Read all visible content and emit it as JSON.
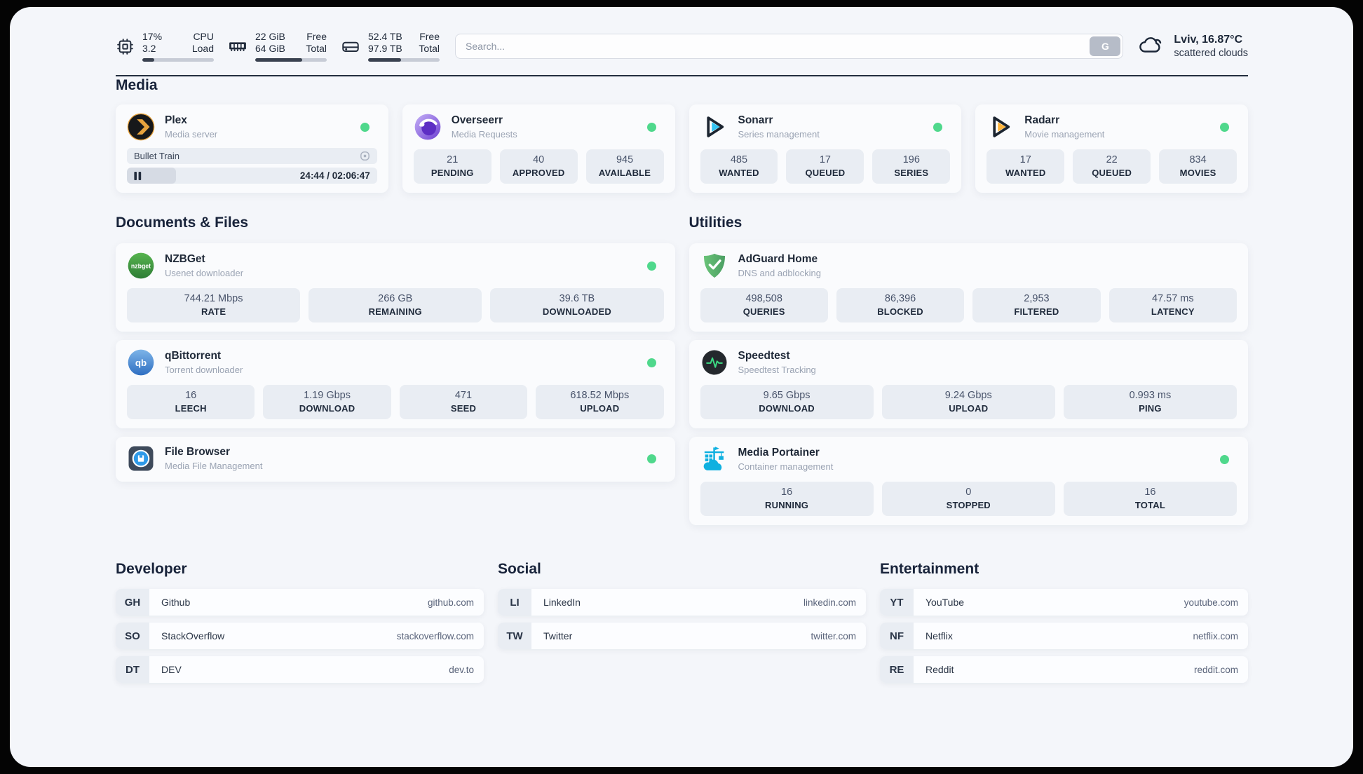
{
  "colors": {
    "status_online": "#4fd88c",
    "plex_accent": "#e8a33d",
    "sonarr_accent": "#35c5f4",
    "radarr_accent": "#ffb53c",
    "adguard_green": "#5fb370",
    "portainer_blue": "#0fb0e0",
    "nzbget_green": "#3e9d44",
    "qbittorrent_blue": "#4687d6",
    "text_dark": "#1f2938"
  },
  "header": {
    "cpu": {
      "icon": "cpu-icon",
      "value_top": "17%",
      "label_top": "CPU",
      "value_bottom": "3.2",
      "label_bottom": "Load",
      "used_pct": 17
    },
    "ram": {
      "icon": "ram-icon",
      "value_top": "22 GiB",
      "label_top": "Free",
      "value_bottom": "64 GiB",
      "label_bottom": "Total",
      "used_pct": 66
    },
    "disk": {
      "icon": "disk-icon",
      "value_top": "52.4 TB",
      "label_top": "Free",
      "value_bottom": "97.9 TB",
      "label_bottom": "Total",
      "used_pct": 46
    },
    "search": {
      "placeholder": "Search...",
      "engine_button": "G"
    },
    "weather": {
      "icon": "cloud-icon",
      "location_temp": "Lviv, 16.87°C",
      "condition": "scattered clouds"
    }
  },
  "sections": {
    "media": {
      "title": "Media"
    },
    "documents": {
      "title": "Documents & Files"
    },
    "utilities": {
      "title": "Utilities"
    },
    "developer": {
      "title": "Developer"
    },
    "social": {
      "title": "Social"
    },
    "entertainment": {
      "title": "Entertainment"
    }
  },
  "apps": {
    "plex": {
      "icon": "plex-icon",
      "title": "Plex",
      "subtitle": "Media server",
      "status": "online",
      "now_playing": "Bullet Train",
      "time_display": "24:44 / 02:06:47",
      "elapsed": "24:44",
      "duration": "02:06:47",
      "progress_pct": 19.5
    },
    "overseerr": {
      "icon": "overseerr-icon",
      "title": "Overseerr",
      "subtitle": "Media Requests",
      "status": "online",
      "stats": [
        {
          "value": "21",
          "label": "PENDING"
        },
        {
          "value": "40",
          "label": "APPROVED"
        },
        {
          "value": "945",
          "label": "AVAILABLE"
        }
      ]
    },
    "sonarr": {
      "icon": "sonarr-icon",
      "title": "Sonarr",
      "subtitle": "Series management",
      "status": "online",
      "stats": [
        {
          "value": "485",
          "label": "WANTED"
        },
        {
          "value": "17",
          "label": "QUEUED"
        },
        {
          "value": "196",
          "label": "SERIES"
        }
      ]
    },
    "radarr": {
      "icon": "radarr-icon",
      "title": "Radarr",
      "subtitle": "Movie management",
      "status": "online",
      "stats": [
        {
          "value": "17",
          "label": "WANTED"
        },
        {
          "value": "22",
          "label": "QUEUED"
        },
        {
          "value": "834",
          "label": "MOVIES"
        }
      ]
    },
    "nzbget": {
      "icon": "nzbget-icon",
      "icon_text": "nzbget",
      "title": "NZBGet",
      "subtitle": "Usenet downloader",
      "status": "online",
      "stats": [
        {
          "value": "744.21 Mbps",
          "label": "RATE"
        },
        {
          "value": "266 GB",
          "label": "REMAINING"
        },
        {
          "value": "39.6 TB",
          "label": "DOWNLOADED"
        }
      ]
    },
    "qbittorrent": {
      "icon": "qbittorrent-icon",
      "icon_text": "qb",
      "title": "qBittorrent",
      "subtitle": "Torrent downloader",
      "status": "online",
      "stats": [
        {
          "value": "16",
          "label": "LEECH"
        },
        {
          "value": "1.19 Gbps",
          "label": "DOWNLOAD"
        },
        {
          "value": "471",
          "label": "SEED"
        },
        {
          "value": "618.52 Mbps",
          "label": "UPLOAD"
        }
      ]
    },
    "filebrowser": {
      "icon": "filebrowser-icon",
      "title": "File Browser",
      "subtitle": "Media File Management",
      "status": "online"
    },
    "adguard": {
      "icon": "adguard-icon",
      "title": "AdGuard Home",
      "subtitle": "DNS and adblocking",
      "status": "none",
      "stats": [
        {
          "value": "498,508",
          "label": "QUERIES"
        },
        {
          "value": "86,396",
          "label": "BLOCKED"
        },
        {
          "value": "2,953",
          "label": "FILTERED"
        },
        {
          "value": "47.57 ms",
          "label": "LATENCY"
        }
      ]
    },
    "speedtest": {
      "icon": "speedtest-icon",
      "title": "Speedtest",
      "subtitle": "Speedtest Tracking",
      "status": "none",
      "stats": [
        {
          "value": "9.65 Gbps",
          "label": "DOWNLOAD"
        },
        {
          "value": "9.24 Gbps",
          "label": "UPLOAD"
        },
        {
          "value": "0.993 ms",
          "label": "PING"
        }
      ]
    },
    "portainer": {
      "icon": "portainer-icon",
      "title": "Media Portainer",
      "subtitle": "Container management",
      "status": "online",
      "stats": [
        {
          "value": "16",
          "label": "RUNNING"
        },
        {
          "value": "0",
          "label": "STOPPED"
        },
        {
          "value": "16",
          "label": "TOTAL"
        }
      ]
    }
  },
  "bookmarks": {
    "developer": [
      {
        "abbr": "GH",
        "name": "Github",
        "url": "github.com"
      },
      {
        "abbr": "SO",
        "name": "StackOverflow",
        "url": "stackoverflow.com"
      },
      {
        "abbr": "DT",
        "name": "DEV",
        "url": "dev.to"
      }
    ],
    "social": [
      {
        "abbr": "LI",
        "name": "LinkedIn",
        "url": "linkedin.com"
      },
      {
        "abbr": "TW",
        "name": "Twitter",
        "url": "twitter.com"
      }
    ],
    "entertainment": [
      {
        "abbr": "YT",
        "name": "YouTube",
        "url": "youtube.com"
      },
      {
        "abbr": "NF",
        "name": "Netflix",
        "url": "netflix.com"
      },
      {
        "abbr": "RE",
        "name": "Reddit",
        "url": "reddit.com"
      }
    ]
  }
}
